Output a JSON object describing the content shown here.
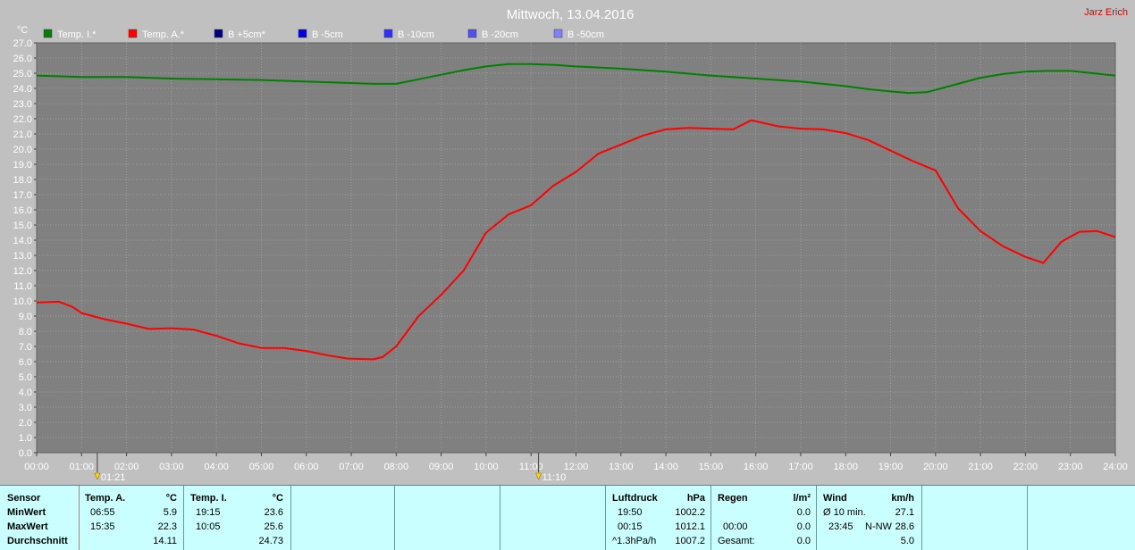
{
  "header": {
    "title": "Mittwoch, 13.04.2016",
    "author": "Jarz Erich"
  },
  "legend": [
    {
      "label": "Temp. I.*",
      "color": "#008000"
    },
    {
      "label": "Temp. A.*",
      "color": "#ff0000"
    },
    {
      "label": "B +5cm*",
      "color": "#000080"
    },
    {
      "label": "B -5cm",
      "color": "#0000e0"
    },
    {
      "label": "B -10cm",
      "color": "#3030ff"
    },
    {
      "label": "B -20cm",
      "color": "#5050f0"
    },
    {
      "label": "B -50cm",
      "color": "#8080ff"
    }
  ],
  "markers": [
    {
      "time": "01:21",
      "icon": "sunrise-icon"
    },
    {
      "time": "11:10",
      "icon": "sun-icon"
    }
  ],
  "chart_data": {
    "type": "line",
    "ylabel": "°C",
    "ylim": [
      0,
      27
    ],
    "xlim": [
      0,
      24
    ],
    "grid": true,
    "yticks": [
      "0.0",
      "1.0",
      "2.0",
      "3.0",
      "4.0",
      "5.0",
      "6.0",
      "7.0",
      "8.0",
      "9.0",
      "10.0",
      "11.0",
      "12.0",
      "13.0",
      "14.0",
      "15.0",
      "16.0",
      "17.0",
      "18.0",
      "19.0",
      "20.0",
      "21.0",
      "22.0",
      "23.0",
      "24.0",
      "25.0",
      "26.0",
      "27.0"
    ],
    "xticks": [
      "00:00",
      "01:00",
      "02:00",
      "03:00",
      "04:00",
      "05:00",
      "06:00",
      "07:00",
      "08:00",
      "09:00",
      "10:00",
      "11:00",
      "12:00",
      "13:00",
      "14:00",
      "15:00",
      "16:00",
      "17:00",
      "18:00",
      "19:00",
      "20:00",
      "21:00",
      "22:00",
      "23:00",
      "24:00"
    ],
    "series": [
      {
        "name": "Temp. I.*",
        "color": "#008000",
        "x": [
          0,
          1,
          2,
          3,
          4,
          5,
          6,
          7,
          7.5,
          8,
          8.5,
          9,
          9.5,
          10,
          10.5,
          11,
          11.5,
          12,
          13,
          14,
          15,
          16,
          17,
          17.5,
          18,
          18.5,
          19,
          19.4,
          19.8,
          20,
          20.5,
          21,
          21.5,
          22,
          22.5,
          23,
          23.5,
          24
        ],
        "y": [
          24.85,
          24.75,
          24.75,
          24.65,
          24.6,
          24.55,
          24.45,
          24.35,
          24.3,
          24.3,
          24.6,
          24.9,
          25.2,
          25.45,
          25.6,
          25.6,
          25.55,
          25.45,
          25.3,
          25.1,
          24.85,
          24.65,
          24.45,
          24.3,
          24.15,
          23.95,
          23.8,
          23.7,
          23.75,
          23.9,
          24.3,
          24.7,
          24.95,
          25.1,
          25.15,
          25.15,
          25.0,
          24.85
        ]
      },
      {
        "name": "Temp. A.*",
        "color": "#ff0000",
        "x": [
          0,
          0.5,
          0.8,
          1,
          1.5,
          2,
          2.5,
          3,
          3.5,
          4,
          4.5,
          5,
          5.5,
          6,
          6.5,
          6.92,
          7.5,
          7.7,
          8,
          8.5,
          9,
          9.5,
          10,
          10.5,
          11,
          11.5,
          12,
          12.5,
          13,
          13.5,
          14,
          14.5,
          15,
          15.5,
          15.9,
          16.5,
          17,
          17.5,
          18,
          18.5,
          19,
          19.5,
          20,
          20.5,
          21,
          21.5,
          22,
          22.4,
          22.8,
          23.2,
          23.6,
          24
        ],
        "y": [
          9.9,
          9.95,
          9.6,
          9.2,
          8.8,
          8.5,
          8.15,
          8.2,
          8.1,
          7.7,
          7.2,
          6.9,
          6.9,
          6.7,
          6.4,
          6.2,
          6.15,
          6.3,
          7.0,
          9.0,
          10.4,
          12.0,
          14.5,
          15.7,
          16.3,
          17.6,
          18.5,
          19.7,
          20.3,
          20.9,
          21.3,
          21.4,
          21.35,
          21.3,
          21.9,
          21.5,
          21.35,
          21.3,
          21.05,
          20.6,
          19.9,
          19.2,
          18.6,
          16.1,
          14.6,
          13.6,
          12.9,
          12.5,
          13.9,
          14.55,
          14.6,
          14.2
        ]
      }
    ]
  },
  "stats": {
    "sensor": {
      "header": "Sensor",
      "rows": [
        "MinWert",
        "MaxWert",
        "Durchschnitt"
      ]
    },
    "temp_a": {
      "header": "Temp. A.",
      "unit": "°C",
      "min_time": "06:55",
      "min": "5.9",
      "max_time": "15:35",
      "max": "22.3",
      "avg": "14.11"
    },
    "temp_i": {
      "header": "Temp. I.",
      "unit": "°C",
      "min_time": "19:15",
      "min": "23.6",
      "max_time": "10:05",
      "max": "25.6",
      "avg": "24.73"
    },
    "pressure": {
      "header": "Luftdruck",
      "unit": "hPa",
      "r1_time": "19:50",
      "r1": "1002.2",
      "r2_time": "00:15",
      "r2": "1012.1",
      "r3_time": "^1.3hPa/h",
      "r3": "1007.2"
    },
    "rain": {
      "header": "Regen",
      "unit": "l/m²",
      "r1": "0.0",
      "r2_time": "00:00",
      "r2": "0.0",
      "r3_label": "Gesamt:",
      "r3": "0.0"
    },
    "wind": {
      "header": "Wind",
      "unit": "km/h",
      "r1_label": "Ø 10 min.",
      "r1": "27.1",
      "r2_time": "23:45",
      "r2_dir": "N-NW",
      "r2": "28.6",
      "r3": "5.0"
    }
  }
}
